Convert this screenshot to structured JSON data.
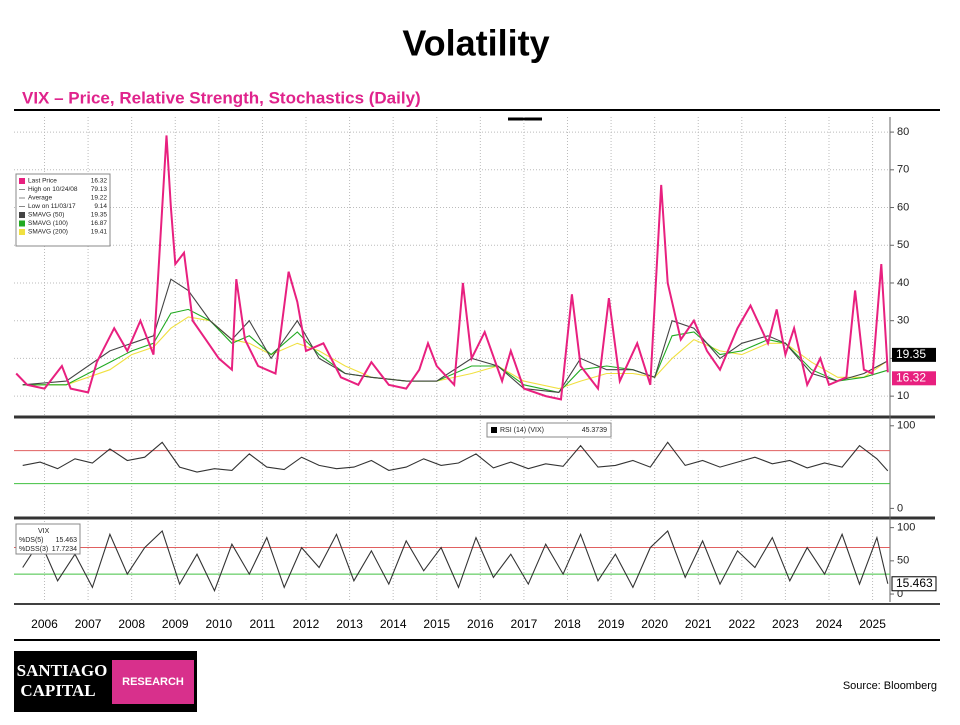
{
  "slide": {
    "title": "Volatility",
    "subtitle": "VIX – Price, Relative Strength, Stochastics (Daily)",
    "source": "Source:  Bloomberg",
    "logo_line1": "SANTIAGO",
    "logo_line2": "CAPITAL",
    "logo_badge": "RESEARCH"
  },
  "chart_data": [
    {
      "type": "line",
      "xlim": [
        2005.3,
        2025.4
      ],
      "xticks": [
        2006,
        2007,
        2008,
        2009,
        2010,
        2011,
        2012,
        2013,
        2014,
        2015,
        2016,
        2017,
        2018,
        2019,
        2020,
        2021,
        2022,
        2023,
        2024,
        2025
      ],
      "ylim": [
        5,
        84
      ],
      "yticks": [
        10,
        20,
        30,
        40,
        50,
        60,
        70,
        80
      ],
      "grid": true,
      "series": [
        {
          "name": "Last Price",
          "color": "#e8207f",
          "legend_value": 16.32,
          "end_tag": true,
          "x": [
            2005.35,
            2005.6,
            2006.0,
            2006.4,
            2006.6,
            2007.0,
            2007.2,
            2007.6,
            2007.9,
            2008.2,
            2008.5,
            2008.8,
            2008.9,
            2009.0,
            2009.2,
            2009.4,
            2009.7,
            2010.0,
            2010.3,
            2010.4,
            2010.6,
            2010.9,
            2011.3,
            2011.6,
            2011.8,
            2012.0,
            2012.4,
            2012.8,
            2013.2,
            2013.5,
            2013.9,
            2014.3,
            2014.6,
            2014.8,
            2015.0,
            2015.4,
            2015.6,
            2015.8,
            2016.1,
            2016.5,
            2016.7,
            2017.0,
            2017.5,
            2017.85,
            2018.1,
            2018.3,
            2018.7,
            2018.95,
            2019.2,
            2019.6,
            2019.9,
            2020.15,
            2020.3,
            2020.6,
            2020.9,
            2021.2,
            2021.5,
            2021.9,
            2022.2,
            2022.6,
            2022.8,
            2023.0,
            2023.2,
            2023.5,
            2023.8,
            2024.0,
            2024.4,
            2024.6,
            2024.8,
            2025.0,
            2025.2,
            2025.35
          ],
          "values": [
            16,
            13,
            12,
            18,
            12,
            11,
            19,
            28,
            22,
            30,
            21,
            79.13,
            60,
            45,
            48,
            30,
            25,
            20,
            17,
            41,
            25,
            18,
            16,
            43,
            35,
            22,
            24,
            15,
            13,
            19,
            13,
            12,
            17,
            24,
            18,
            13,
            40,
            20,
            27,
            14,
            22,
            12,
            10,
            9.14,
            37,
            18,
            12,
            36,
            14,
            24,
            13,
            66,
            40,
            25,
            30,
            22,
            17,
            28,
            34,
            24,
            33,
            21,
            28,
            13,
            20,
            13,
            15,
            38,
            17,
            16,
            45,
            16.32
          ]
        },
        {
          "name": "SMAVG (50)",
          "color": "#444444",
          "legend_value": 19.35,
          "end_tag": true,
          "x": [
            2005.5,
            2006.5,
            2007.5,
            2008.0,
            2008.5,
            2008.9,
            2009.3,
            2009.8,
            2010.3,
            2010.7,
            2011.2,
            2011.8,
            2012.3,
            2012.9,
            2013.5,
            2014.3,
            2015.0,
            2015.8,
            2016.4,
            2017.0,
            2017.8,
            2018.3,
            2018.9,
            2019.5,
            2020.0,
            2020.4,
            2020.9,
            2021.5,
            2022.0,
            2022.6,
            2023.0,
            2023.6,
            2024.2,
            2024.8,
            2025.35
          ],
          "values": [
            13,
            14,
            22,
            24,
            26,
            41,
            38,
            30,
            25,
            30,
            20,
            30,
            20,
            16,
            15,
            14,
            14,
            20,
            18,
            12,
            11,
            20,
            17,
            17,
            15,
            30,
            28,
            20,
            24,
            26,
            24,
            16,
            14,
            16,
            19.35
          ]
        },
        {
          "name": "SMAVG (100)",
          "color": "#22aa22",
          "legend_value": 16.87,
          "end_tag": false,
          "x": [
            2005.5,
            2006.5,
            2007.5,
            2008.0,
            2008.5,
            2008.9,
            2009.3,
            2009.8,
            2010.3,
            2010.7,
            2011.2,
            2011.8,
            2012.3,
            2012.9,
            2013.5,
            2014.3,
            2015.0,
            2015.8,
            2016.4,
            2017.0,
            2017.8,
            2018.3,
            2018.9,
            2019.5,
            2020.0,
            2020.4,
            2020.9,
            2021.5,
            2022.0,
            2022.6,
            2023.0,
            2023.6,
            2024.2,
            2024.8,
            2025.35
          ],
          "values": [
            13,
            13,
            19,
            22,
            24,
            32,
            33,
            30,
            24,
            26,
            21,
            27,
            21,
            16,
            15,
            14,
            14,
            18,
            18,
            13,
            11,
            17,
            18,
            17,
            15,
            26,
            27,
            21,
            22,
            25,
            24,
            17,
            14,
            15,
            16.87
          ]
        },
        {
          "name": "SMAVG (200)",
          "color": "#f0e040",
          "legend_value": 19.41,
          "end_tag": false,
          "x": [
            2005.5,
            2006.5,
            2007.5,
            2008.0,
            2008.5,
            2008.9,
            2009.3,
            2009.8,
            2010.3,
            2010.7,
            2011.2,
            2011.8,
            2012.3,
            2012.9,
            2013.5,
            2014.3,
            2015.0,
            2015.8,
            2016.4,
            2017.0,
            2017.8,
            2018.3,
            2018.9,
            2019.5,
            2020.0,
            2020.4,
            2020.9,
            2021.5,
            2022.0,
            2022.6,
            2023.0,
            2023.6,
            2024.2,
            2024.8,
            2025.35
          ],
          "values": [
            13,
            13,
            17,
            21,
            23,
            28,
            31,
            30,
            25,
            24,
            21,
            24,
            22,
            18,
            15,
            14,
            14,
            16,
            18,
            14,
            12,
            14,
            16,
            16,
            15,
            20,
            25,
            22,
            21,
            24,
            24,
            19,
            15,
            15,
            19.41
          ]
        }
      ],
      "stats": [
        {
          "name": "High on 10/24/08",
          "value": 79.13
        },
        {
          "name": "Average",
          "value": 19.22
        },
        {
          "name": "Low on 11/03/17",
          "value": 9.14
        }
      ]
    },
    {
      "type": "line",
      "ylim": [
        -8,
        107
      ],
      "yticks": [
        0,
        100
      ],
      "ref_lines": [
        {
          "value": 70,
          "color": "#e06060"
        },
        {
          "value": 30,
          "color": "#40c040"
        }
      ],
      "series": [
        {
          "name": "RSI (14) (VIX)",
          "color": "#333333",
          "x": [
            2005.5,
            2005.9,
            2006.3,
            2006.7,
            2007.1,
            2007.5,
            2007.9,
            2008.3,
            2008.7,
            2009.1,
            2009.5,
            2009.9,
            2010.3,
            2010.7,
            2011.1,
            2011.5,
            2011.9,
            2012.3,
            2012.7,
            2013.1,
            2013.5,
            2013.9,
            2014.3,
            2014.7,
            2015.1,
            2015.5,
            2015.9,
            2016.3,
            2016.7,
            2017.1,
            2017.5,
            2017.9,
            2018.3,
            2018.7,
            2019.1,
            2019.5,
            2019.9,
            2020.3,
            2020.7,
            2021.1,
            2021.5,
            2021.9,
            2022.3,
            2022.7,
            2023.1,
            2023.5,
            2023.9,
            2024.3,
            2024.7,
            2025.1,
            2025.35
          ],
          "values": [
            52,
            56,
            48,
            60,
            55,
            72,
            58,
            62,
            80,
            50,
            44,
            48,
            46,
            66,
            50,
            47,
            62,
            52,
            48,
            50,
            58,
            46,
            50,
            60,
            52,
            55,
            66,
            49,
            56,
            48,
            54,
            51,
            76,
            50,
            52,
            58,
            50,
            80,
            52,
            58,
            50,
            56,
            62,
            54,
            58,
            49,
            55,
            50,
            76,
            60,
            45.3739
          ]
        }
      ]
    },
    {
      "type": "line",
      "ylim": [
        -12,
        110
      ],
      "yticks": [
        0,
        50,
        100
      ],
      "ref_lines": [
        {
          "value": 70,
          "color": "#e06060"
        },
        {
          "value": 30,
          "color": "#40c040"
        }
      ],
      "legend_title": "VIX",
      "series": [
        {
          "name": "%DS(5)",
          "color": "#333333",
          "legend_value": 15.463,
          "end_tag": true,
          "x": [
            2005.5,
            2005.9,
            2006.3,
            2006.7,
            2007.1,
            2007.5,
            2007.9,
            2008.3,
            2008.7,
            2009.1,
            2009.5,
            2009.9,
            2010.3,
            2010.7,
            2011.1,
            2011.5,
            2011.9,
            2012.3,
            2012.7,
            2013.1,
            2013.5,
            2013.9,
            2014.3,
            2014.7,
            2015.1,
            2015.5,
            2015.9,
            2016.3,
            2016.7,
            2017.1,
            2017.5,
            2017.9,
            2018.3,
            2018.7,
            2019.1,
            2019.5,
            2019.9,
            2020.3,
            2020.7,
            2021.1,
            2021.5,
            2021.9,
            2022.3,
            2022.7,
            2023.1,
            2023.5,
            2023.9,
            2024.3,
            2024.7,
            2025.1,
            2025.35
          ],
          "values": [
            40,
            80,
            20,
            60,
            10,
            90,
            30,
            70,
            95,
            15,
            60,
            5,
            75,
            30,
            85,
            10,
            70,
            40,
            90,
            20,
            65,
            15,
            80,
            35,
            70,
            10,
            85,
            25,
            60,
            15,
            75,
            30,
            90,
            20,
            60,
            10,
            70,
            95,
            25,
            80,
            15,
            65,
            40,
            85,
            20,
            70,
            30,
            90,
            15,
            85,
            15.463
          ]
        }
      ],
      "stats": [
        {
          "name": "%DSS(3)",
          "value": 17.7234
        }
      ]
    }
  ]
}
